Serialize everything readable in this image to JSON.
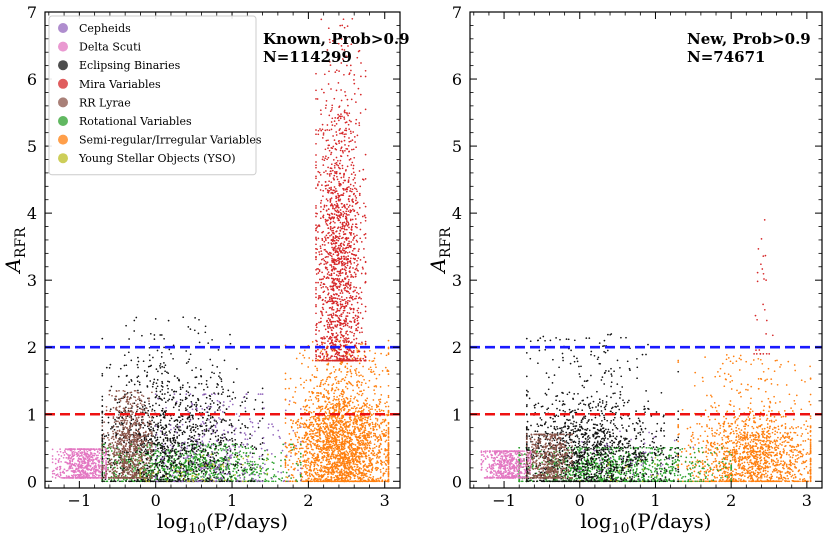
{
  "chart_data": [
    {
      "type": "scatter",
      "xlabel": "log10(P/days)",
      "ylabel": "A_RFR",
      "xlim": [
        -1.45,
        3.2
      ],
      "ylim": [
        -0.1,
        7.0
      ],
      "xticks": [
        -1,
        0,
        1,
        2,
        3
      ],
      "yticks": [
        0,
        1,
        2,
        3,
        4,
        5,
        6,
        7
      ],
      "xtick_labels": [
        "−1",
        "0",
        "1",
        "2",
        "3"
      ],
      "ytick_labels": [
        "0",
        "1",
        "2",
        "3",
        "4",
        "5",
        "6",
        "7"
      ],
      "annotation": [
        "Known, Prob>0.9",
        "N=114299"
      ],
      "hlines": [
        {
          "y": 2.0,
          "color": "#1a1aff",
          "style": "dashed"
        },
        {
          "y": 1.0,
          "color": "#ee1111",
          "style": "dashed"
        }
      ],
      "legend": {
        "location": "top-left",
        "entries": [
          {
            "name": "Cepheids",
            "color": "#9467bd"
          },
          {
            "name": "Delta Scuti",
            "color": "#e377c2"
          },
          {
            "name": "Eclipsing Binaries",
            "color": "#111111"
          },
          {
            "name": "Mira Variables",
            "color": "#d62728"
          },
          {
            "name": "RR Lyrae",
            "color": "#8c564b"
          },
          {
            "name": "Rotational Variables",
            "color": "#2ca02c"
          },
          {
            "name": "Semi-regular/Irregular Variables",
            "color": "#ff7f0e"
          },
          {
            "name": "Young Stellar Objects (YSO)",
            "color": "#bcbd22"
          }
        ]
      },
      "series": [
        {
          "name": "Semi-regular/Irregular Variables",
          "color": "#ff7f0e",
          "n": 2600,
          "x_range": [
            1.7,
            3.05
          ],
          "x_center": 2.45,
          "y_range": [
            0.0,
            2.1
          ],
          "y_peak": 0.5
        },
        {
          "name": "Rotational Variables",
          "color": "#2ca02c",
          "n": 1100,
          "x_range": [
            -0.7,
            1.9
          ],
          "x_center": 0.4,
          "y_range": [
            0.0,
            0.55
          ],
          "y_peak": 0.2
        },
        {
          "name": "Eclipsing Binaries",
          "color": "#111111",
          "n": 1400,
          "x_range": [
            -0.7,
            1.4
          ],
          "x_center": 0.2,
          "y_range": [
            0.0,
            2.45
          ],
          "y_peak": 0.6
        },
        {
          "name": "Cepheids",
          "color": "#9467bd",
          "n": 320,
          "x_range": [
            0.0,
            1.9
          ],
          "x_center": 0.8,
          "y_range": [
            0.0,
            1.3
          ],
          "y_peak": 0.5
        },
        {
          "name": "Delta Scuti",
          "color": "#e377c2",
          "n": 650,
          "x_range": [
            -1.35,
            -0.65
          ],
          "x_center": -0.95,
          "y_range": [
            0.05,
            0.48
          ],
          "y_peak": 0.25
        },
        {
          "name": "RR Lyrae",
          "color": "#8c564b",
          "n": 800,
          "x_range": [
            -0.7,
            -0.05
          ],
          "x_center": -0.35,
          "y_range": [
            0.05,
            1.35
          ],
          "y_peak": 0.5
        },
        {
          "name": "Young Stellar Objects (YSO)",
          "color": "#bcbd22",
          "n": 60,
          "x_range": [
            -0.2,
            1.8
          ],
          "x_center": 0.7,
          "y_range": [
            0.0,
            0.4
          ],
          "y_peak": 0.15
        },
        {
          "name": "Mira Variables",
          "color": "#d62728",
          "n": 1700,
          "x_range": [
            2.1,
            2.75
          ],
          "x_center": 2.4,
          "y_range": [
            1.8,
            6.9
          ],
          "y_peak": 3.2
        }
      ]
    },
    {
      "type": "scatter",
      "xlabel": "log10(P/days)",
      "ylabel": "A_RFR",
      "xlim": [
        -1.45,
        3.2
      ],
      "ylim": [
        -0.1,
        7.0
      ],
      "xticks": [
        -1,
        0,
        1,
        2,
        3
      ],
      "yticks": [
        0,
        1,
        2,
        3,
        4,
        5,
        6,
        7
      ],
      "xtick_labels": [
        "−1",
        "0",
        "1",
        "2",
        "3"
      ],
      "ytick_labels": [
        "0",
        "1",
        "2",
        "3",
        "4",
        "5",
        "6",
        "7"
      ],
      "annotation": [
        "New, Prob>0.9",
        "N=74671"
      ],
      "hlines": [
        {
          "y": 2.0,
          "color": "#1a1aff",
          "style": "dashed"
        },
        {
          "y": 1.0,
          "color": "#ee1111",
          "style": "dashed"
        }
      ],
      "series": [
        {
          "name": "Semi-regular/Irregular Variables",
          "color": "#ff7f0e",
          "n": 1500,
          "x_range": [
            1.3,
            3.05
          ],
          "x_center": 2.3,
          "y_range": [
            0.0,
            1.9
          ],
          "y_peak": 0.35
        },
        {
          "name": "Rotational Variables",
          "color": "#2ca02c",
          "n": 1100,
          "x_range": [
            -0.8,
            2.0
          ],
          "x_center": 0.4,
          "y_range": [
            0.0,
            0.5
          ],
          "y_peak": 0.2
        },
        {
          "name": "Eclipsing Binaries",
          "color": "#111111",
          "n": 1400,
          "x_range": [
            -0.7,
            1.3
          ],
          "x_center": 0.1,
          "y_range": [
            0.0,
            2.2
          ],
          "y_peak": 0.45
        },
        {
          "name": "Delta Scuti",
          "color": "#e377c2",
          "n": 550,
          "x_range": [
            -1.3,
            -0.65
          ],
          "x_center": -0.95,
          "y_range": [
            0.05,
            0.45
          ],
          "y_peak": 0.25
        },
        {
          "name": "RR Lyrae",
          "color": "#8c564b",
          "n": 500,
          "x_range": [
            -0.7,
            -0.1
          ],
          "x_center": -0.4,
          "y_range": [
            0.05,
            0.7
          ],
          "y_peak": 0.35
        },
        {
          "name": "Cepheids",
          "color": "#9467bd",
          "n": 40,
          "x_range": [
            0.0,
            1.5
          ],
          "x_center": 0.6,
          "y_range": [
            0.0,
            0.8
          ],
          "y_peak": 0.3
        },
        {
          "name": "Young Stellar Objects (YSO)",
          "color": "#bcbd22",
          "n": 20,
          "x_range": [
            0.0,
            1.6
          ],
          "x_center": 0.7,
          "y_range": [
            0.0,
            0.35
          ],
          "y_peak": 0.15
        },
        {
          "name": "Mira Variables",
          "color": "#d62728",
          "n": 28,
          "x_range": [
            2.25,
            2.55
          ],
          "x_center": 2.4,
          "y_range": [
            1.9,
            4.1
          ],
          "y_peak": 2.6
        }
      ]
    }
  ]
}
